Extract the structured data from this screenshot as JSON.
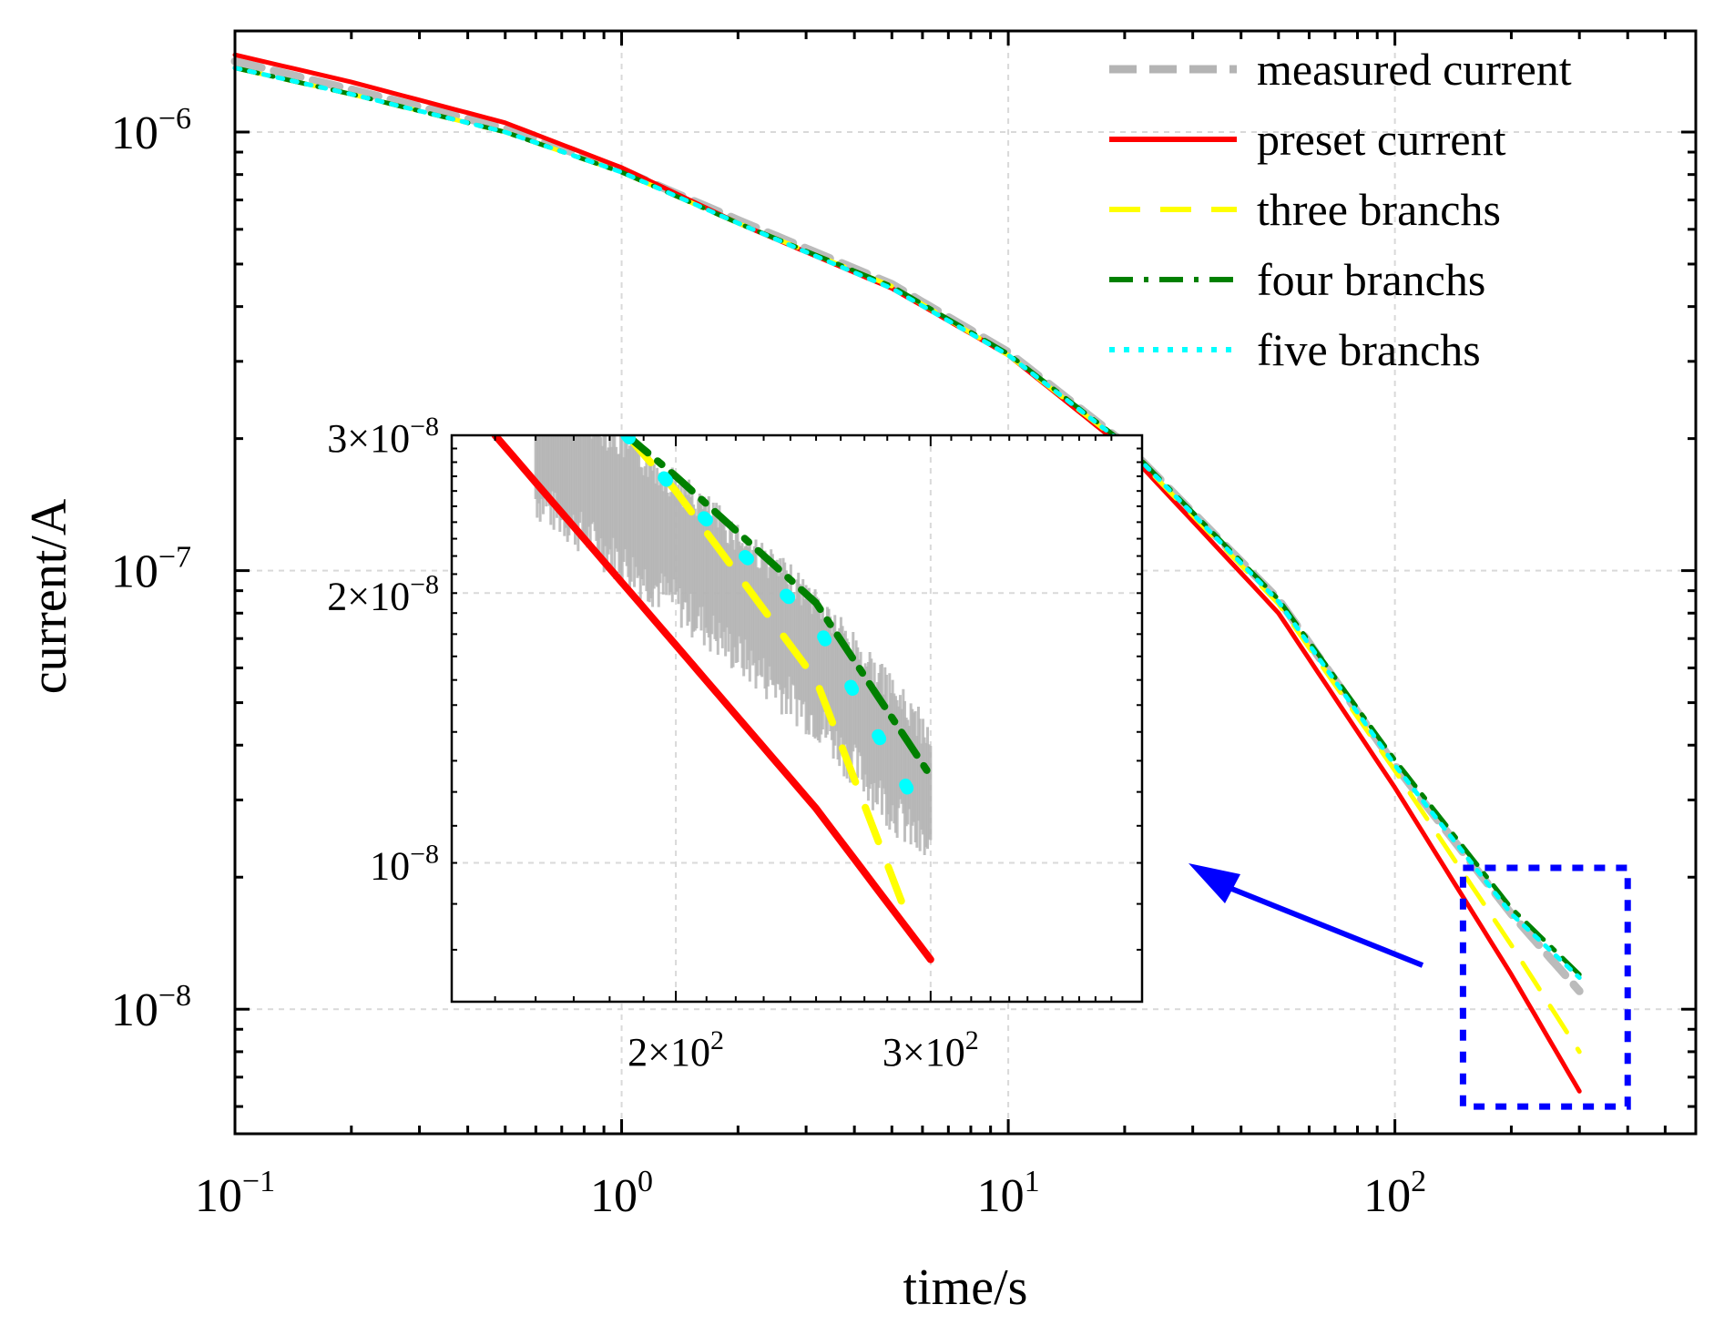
{
  "chart_data": {
    "type": "line",
    "xscale": "log",
    "yscale": "log",
    "xlabel": "time/s",
    "ylabel": "current/A",
    "xlim": [
      0.1,
      600
    ],
    "ylim": [
      5.2e-09,
      1.7e-06
    ],
    "grid": true,
    "legend_position": "top-right",
    "x_ticks": [
      {
        "value": 0.1,
        "base": "10",
        "exp": "−1"
      },
      {
        "value": 1,
        "base": "10",
        "exp": "0"
      },
      {
        "value": 10,
        "base": "10",
        "exp": "1"
      },
      {
        "value": 100,
        "base": "10",
        "exp": "2"
      }
    ],
    "y_ticks": [
      {
        "value": 1e-06,
        "base": "10",
        "exp": "−6"
      },
      {
        "value": 1e-07,
        "base": "10",
        "exp": "−7"
      },
      {
        "value": 1e-08,
        "base": "10",
        "exp": "−8"
      }
    ],
    "series": [
      {
        "name": "measured current",
        "color": "#b4b4b4",
        "dash": "long-dash",
        "x": [
          0.1,
          0.2,
          0.5,
          1,
          2,
          5,
          10,
          20,
          50,
          100,
          200,
          300
        ],
        "y": [
          1.45e-06,
          1.25e-06,
          1.02e-06,
          8.2e-07,
          6.3e-07,
          4.5e-07,
          3.15e-07,
          1.95e-07,
          8.6e-08,
          3.6e-08,
          1.65e-08,
          1.1e-08
        ]
      },
      {
        "name": "preset current",
        "color": "#ff0000",
        "dash": "solid",
        "x": [
          0.1,
          0.2,
          0.5,
          1,
          2,
          5,
          10,
          20,
          50,
          100,
          200,
          300
        ],
        "y": [
          1.5e-06,
          1.3e-06,
          1.05e-06,
          8.3e-07,
          6.2e-07,
          4.4e-07,
          3.1e-07,
          1.9e-07,
          8e-08,
          3.2e-08,
          1.2e-08,
          6.5e-09
        ]
      },
      {
        "name": "three branchs",
        "color": "#ffff00",
        "dash": "dash",
        "x": [
          0.1,
          0.2,
          0.5,
          1,
          2,
          5,
          10,
          20,
          50,
          100,
          200,
          300
        ],
        "y": [
          1.4e-06,
          1.22e-06,
          1e-06,
          8.1e-07,
          6.2e-07,
          4.45e-07,
          3.1e-07,
          1.93e-07,
          8.4e-08,
          3.5e-08,
          1.4e-08,
          8e-09
        ]
      },
      {
        "name": "four branchs",
        "color": "#008000",
        "dash": "dash-dot",
        "x": [
          0.1,
          0.2,
          0.5,
          1,
          2,
          5,
          10,
          20,
          50,
          100,
          200,
          300
        ],
        "y": [
          1.4e-06,
          1.22e-06,
          1e-06,
          8.1e-07,
          6.2e-07,
          4.45e-07,
          3.12e-07,
          1.95e-07,
          8.6e-08,
          3.7e-08,
          1.7e-08,
          1.2e-08
        ]
      },
      {
        "name": "five branchs",
        "color": "#00ffff",
        "dash": "dot",
        "x": [
          0.1,
          0.2,
          0.5,
          1,
          2,
          5,
          10,
          20,
          50,
          100,
          200,
          300
        ],
        "y": [
          1.4e-06,
          1.22e-06,
          1e-06,
          8.1e-07,
          6.2e-07,
          4.4e-07,
          3.1e-07,
          1.94e-07,
          8.5e-08,
          3.6e-08,
          1.65e-08,
          1.18e-08
        ]
      }
    ],
    "zoom_region": {
      "x": [
        150,
        400
      ],
      "y": [
        6e-09,
        2.1e-08
      ],
      "color": "#0000ff"
    },
    "inset": {
      "xscale": "log",
      "yscale": "log",
      "xlim": [
        140,
        420
      ],
      "ylim": [
        7e-09,
        3e-08
      ],
      "x_ticks": [
        {
          "value": 200,
          "base": "2×10",
          "exp": "2"
        },
        {
          "value": 300,
          "base": "3×10",
          "exp": "2"
        }
      ],
      "y_ticks": [
        {
          "value": 3e-08,
          "base": "3×10",
          "exp": "−8"
        },
        {
          "value": 2e-08,
          "base": "2×10",
          "exp": "−8"
        },
        {
          "value": 1e-08,
          "base": "10",
          "exp": "−8"
        }
      ],
      "series": [
        {
          "name": "measured current",
          "x": [
            160,
            200,
            250,
            300
          ],
          "y": [
            3e-08,
            2.3e-08,
            1.7e-08,
            1.2e-08
          ],
          "noise_band": [
            0.8,
            1.2
          ]
        },
        {
          "name": "preset current",
          "x": [
            150,
            200,
            250,
            300
          ],
          "y": [
            3e-08,
            1.75e-08,
            1.15e-08,
            7.8e-09
          ]
        },
        {
          "name": "three branchs",
          "x": [
            185,
            200,
            250,
            290
          ],
          "y": [
            3e-08,
            2.6e-08,
            1.6e-08,
            8.6e-09
          ]
        },
        {
          "name": "four branchs",
          "x": [
            185,
            200,
            250,
            300
          ],
          "y": [
            3e-08,
            2.7e-08,
            1.95e-08,
            1.25e-08
          ]
        },
        {
          "name": "five branchs",
          "x": [
            185,
            200,
            250,
            290
          ],
          "y": [
            3e-08,
            2.6e-08,
            1.85e-08,
            1.2e-08
          ]
        }
      ]
    }
  }
}
